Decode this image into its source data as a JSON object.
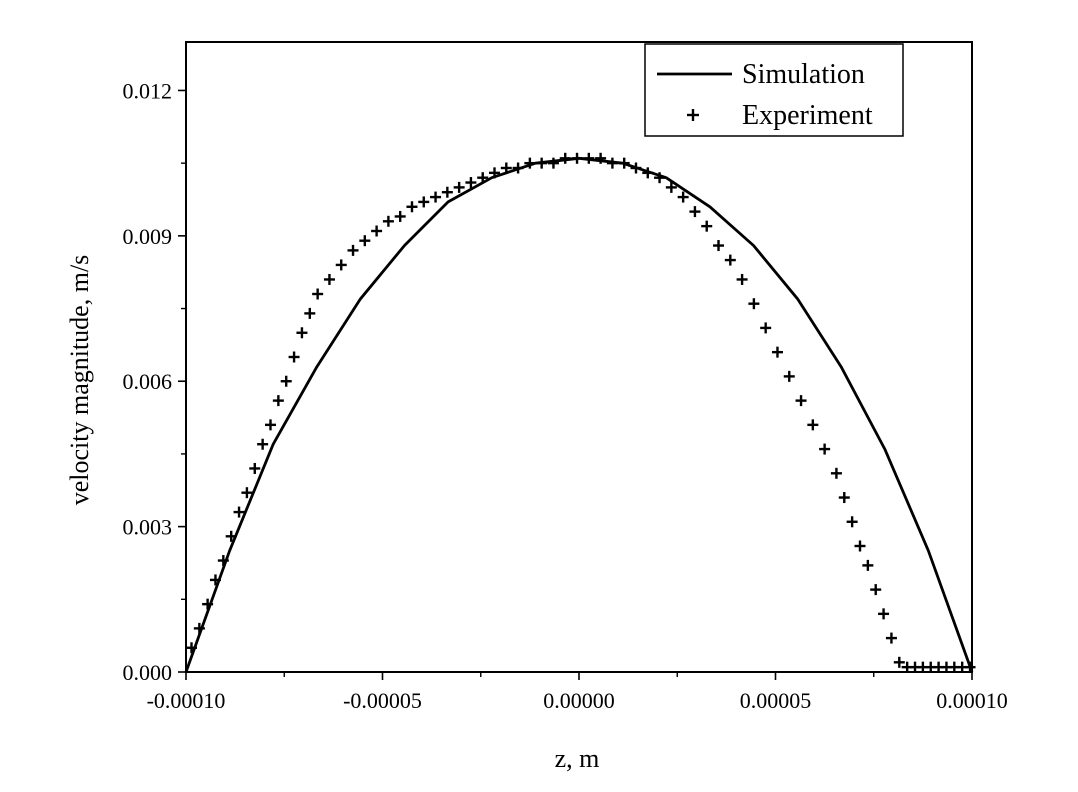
{
  "chart_data": {
    "type": "line",
    "xlabel": "z, m",
    "ylabel": "velocity magnitude, m/s",
    "xlim": [
      -0.0001,
      0.0001
    ],
    "ylim": [
      0,
      0.013
    ],
    "x_ticks": [
      -0.0001,
      -5e-05,
      0,
      5e-05,
      0.0001
    ],
    "x_tick_labels": [
      "-0.00010",
      "-0.00005",
      "0.00000",
      "0.00005",
      "0.00010"
    ],
    "y_ticks": [
      0,
      0.003,
      0.006,
      0.009,
      0.012
    ],
    "y_tick_labels": [
      "0.000",
      "0.003",
      "0.006",
      "0.009",
      "0.012"
    ],
    "grid": false,
    "legend_position": "top-right",
    "series": [
      {
        "name": "Simulation",
        "style": "line",
        "color": "#000000",
        "x": [
          -0.0001,
          -8.89e-05,
          -7.78e-05,
          -6.67e-05,
          -5.56e-05,
          -4.44e-05,
          -3.33e-05,
          -2.22e-05,
          -1.11e-05,
          0,
          1.11e-05,
          2.22e-05,
          3.33e-05,
          4.44e-05,
          5.56e-05,
          6.67e-05,
          7.78e-05,
          8.89e-05,
          0.0001
        ],
        "y": [
          0,
          0.0025,
          0.0047,
          0.0063,
          0.0077,
          0.0088,
          0.0097,
          0.0102,
          0.0105,
          0.0106,
          0.0105,
          0.0102,
          0.0096,
          0.0088,
          0.0077,
          0.0063,
          0.0046,
          0.0025,
          0
        ]
      },
      {
        "name": "Experiment",
        "style": "marker",
        "marker": "plus",
        "color": "#000000",
        "x": [
          -9.86e-05,
          -9.66e-05,
          -9.45e-05,
          -9.25e-05,
          -9.05e-05,
          -8.85e-05,
          -8.65e-05,
          -8.45e-05,
          -8.25e-05,
          -8.05e-05,
          -7.85e-05,
          -7.65e-05,
          -7.45e-05,
          -7.25e-05,
          -7.05e-05,
          -6.85e-05,
          -6.65e-05,
          -6.35e-05,
          -6.05e-05,
          -5.75e-05,
          -5.45e-05,
          -5.15e-05,
          -4.85e-05,
          -4.55e-05,
          -4.25e-05,
          -3.95e-05,
          -3.65e-05,
          -3.35e-05,
          -3.05e-05,
          -2.75e-05,
          -2.45e-05,
          -2.15e-05,
          -1.85e-05,
          -1.55e-05,
          -1.25e-05,
          -9.5e-06,
          -6.5e-06,
          -3.5e-06,
          -5e-07,
          2.5e-06,
          5.5e-06,
          8.5e-06,
          1.15e-05,
          1.45e-05,
          1.75e-05,
          2.05e-05,
          2.35e-05,
          2.65e-05,
          2.95e-05,
          3.25e-05,
          3.55e-05,
          3.85e-05,
          4.15e-05,
          4.45e-05,
          4.75e-05,
          5.05e-05,
          5.35e-05,
          5.65e-05,
          5.95e-05,
          6.25e-05,
          6.55e-05,
          6.75e-05,
          6.95e-05,
          7.15e-05,
          7.35e-05,
          7.55e-05,
          7.75e-05,
          7.95e-05,
          8.15e-05,
          8.35e-05,
          8.55e-05,
          8.75e-05,
          8.95e-05,
          9.15e-05,
          9.35e-05,
          9.55e-05,
          9.75e-05,
          9.95e-05
        ],
        "y": [
          0.0005,
          0.0009,
          0.0014,
          0.0019,
          0.0023,
          0.0028,
          0.0033,
          0.0037,
          0.0042,
          0.0047,
          0.0051,
          0.0056,
          0.006,
          0.0065,
          0.007,
          0.0074,
          0.0078,
          0.0081,
          0.0084,
          0.0087,
          0.0089,
          0.0091,
          0.0093,
          0.0094,
          0.0096,
          0.0097,
          0.0098,
          0.0099,
          0.01,
          0.0101,
          0.0102,
          0.0103,
          0.0104,
          0.0104,
          0.0105,
          0.0105,
          0.0105,
          0.0106,
          0.0106,
          0.0106,
          0.0106,
          0.0105,
          0.0105,
          0.0104,
          0.0103,
          0.0102,
          0.01,
          0.0098,
          0.0095,
          0.0092,
          0.0088,
          0.0085,
          0.0081,
          0.0076,
          0.0071,
          0.0066,
          0.0061,
          0.0056,
          0.0051,
          0.0046,
          0.0041,
          0.0036,
          0.0031,
          0.0026,
          0.0022,
          0.0017,
          0.0012,
          0.0007,
          0.0002,
          0.0001,
          0.0001,
          0.0001,
          0.0001,
          0.0001,
          0.0001,
          0.0001,
          0.0001,
          0.0001
        ]
      }
    ]
  }
}
